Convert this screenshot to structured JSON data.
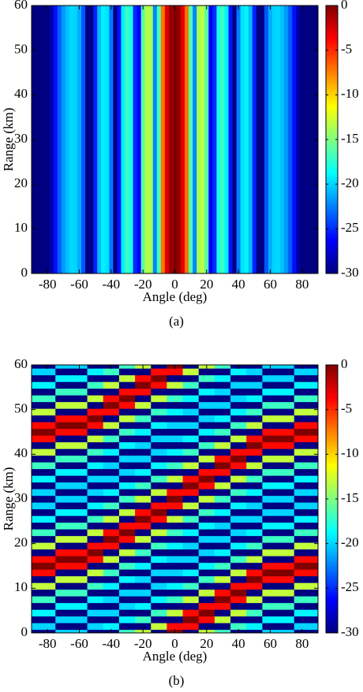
{
  "chart_data": [
    {
      "type": "heatmap",
      "caption": "(a)",
      "xlabel": "Angle (deg)",
      "ylabel": "Range (km)",
      "x": [
        -90,
        -87.5,
        -85,
        -82.5,
        -80,
        -77.5,
        -75,
        -72.5,
        -70,
        -67.5,
        -65,
        -62.5,
        -60,
        -57.5,
        -55,
        -52.5,
        -50,
        -47.5,
        -45,
        -42.5,
        -40,
        -37.5,
        -35,
        -32.5,
        -30,
        -27.5,
        -25,
        -22.5,
        -20,
        -17.5,
        -15,
        -12.5,
        -10,
        -7.5,
        -5,
        -2.5,
        0,
        2.5,
        5,
        7.5,
        10,
        12.5,
        15,
        17.5,
        20,
        22.5,
        25,
        27.5,
        30,
        32.5,
        35,
        37.5,
        40,
        42.5,
        45,
        47.5,
        50,
        52.5,
        55,
        57.5,
        60,
        62.5,
        65,
        67.5,
        70,
        72.5,
        75,
        77.5,
        80,
        82.5,
        85,
        87.5,
        90
      ],
      "values": [
        -30,
        -30,
        -30,
        -30,
        -30,
        -28.8,
        -25.8,
        -23.5,
        -21.8,
        -20.6,
        -19.9,
        -20,
        -21.1,
        -23.7,
        -30,
        -30,
        -25.3,
        -20.8,
        -19.1,
        -19.5,
        -22.7,
        -30,
        -25.8,
        -19.1,
        -17,
        -18.1,
        -25,
        -26.4,
        -16.2,
        -13.2,
        -13.9,
        -22.3,
        -16.5,
        -7.2,
        -2.9,
        -0.7,
        0,
        -0.7,
        -2.9,
        -7.2,
        -16.5,
        -22.3,
        -13.9,
        -13.2,
        -16.2,
        -26.4,
        -25,
        -18.1,
        -17,
        -19.1,
        -25.8,
        -30,
        -22.7,
        -19.5,
        -19.1,
        -20.8,
        -25.3,
        -30,
        -30,
        -23.7,
        -21.1,
        -20,
        -19.9,
        -20.6,
        -21.8,
        -23.5,
        -25.8,
        -28.8,
        -30,
        -30,
        -30,
        -30,
        -30
      ],
      "xlim": [
        -90,
        90
      ],
      "ylim": [
        0,
        60
      ],
      "xticks": [
        -80,
        -60,
        -40,
        -20,
        0,
        20,
        40,
        60,
        80
      ],
      "yticks": [
        0,
        10,
        20,
        30,
        40,
        50,
        60
      ],
      "colormap": "jet",
      "clim": [
        -30,
        0
      ],
      "cticks": [
        0,
        -5,
        -10,
        -15,
        -20,
        -25,
        -30
      ]
    },
    {
      "type": "heatmap",
      "caption": "(b)",
      "xlabel": "Angle (deg)",
      "ylabel": "Range (km)",
      "x": [
        -90,
        -80,
        -70,
        -60,
        -50,
        -40,
        -30,
        -20,
        -10,
        0,
        10,
        20,
        30,
        40,
        50,
        60,
        70,
        80,
        90
      ],
      "y": [
        0,
        1.5,
        3,
        4.5,
        6,
        7.5,
        9,
        10.5,
        12,
        13.5,
        15,
        16.5,
        18,
        19.5,
        21,
        22.5,
        24,
        25.5,
        27,
        28.5,
        30,
        31.5,
        33,
        34.5,
        36,
        37.5,
        39,
        40.5,
        42,
        43.5,
        45,
        46.5,
        48,
        49.5,
        51,
        52.5,
        54,
        55.5,
        57,
        58.5,
        60
      ],
      "z": [
        [
          -30,
          -30,
          -20,
          -20,
          -30,
          -30,
          -17,
          -13,
          -30,
          0,
          -30,
          -13,
          -17,
          -30,
          -30,
          -20,
          -20,
          -30,
          -30
        ],
        [
          -20,
          -20,
          -30,
          -30,
          -20,
          -19,
          -30,
          -30,
          -13,
          -4,
          -4,
          -30,
          -30,
          -17,
          -19,
          -30,
          -30,
          -20,
          -20
        ],
        [
          -30,
          -30,
          -20,
          -20,
          -30,
          -30,
          -19,
          -17,
          -30,
          -30,
          0,
          -4,
          -13,
          -30,
          -30,
          -19,
          -19,
          -30,
          -30
        ],
        [
          -19,
          -19,
          -30,
          -30,
          -20,
          -20,
          -30,
          -30,
          -17,
          -13,
          -4,
          0,
          -30,
          -13,
          -17,
          -30,
          -30,
          -19,
          -19
        ],
        [
          -30,
          -30,
          -19,
          -19,
          -30,
          -30,
          -20,
          -19,
          -30,
          -30,
          -30,
          -4,
          -4,
          -30,
          -30,
          -17,
          -17,
          -30,
          -30
        ],
        [
          -17,
          -17,
          -30,
          -30,
          -19,
          -20,
          -30,
          -30,
          -19,
          -17,
          -13,
          -30,
          0,
          -4,
          -13,
          -30,
          -30,
          -17,
          -17
        ],
        [
          -30,
          -30,
          -17,
          -17,
          -30,
          -30,
          -20,
          -20,
          -30,
          -30,
          -30,
          -13,
          -4,
          0,
          -30,
          -13,
          -13,
          -30,
          -30
        ],
        [
          -13,
          -13,
          -30,
          -30,
          -17,
          -19,
          -30,
          -30,
          -20,
          -19,
          -17,
          -30,
          -30,
          -4,
          -4,
          -30,
          -30,
          -13,
          -13
        ],
        [
          -30,
          -30,
          -13,
          -13,
          -30,
          -30,
          -19,
          -20,
          -30,
          -30,
          -30,
          -17,
          -13,
          -30,
          0,
          -4,
          -4,
          -30,
          -30
        ],
        [
          -4,
          -4,
          -30,
          -30,
          -13,
          -17,
          -30,
          -30,
          -20,
          -20,
          -19,
          -30,
          -30,
          -13,
          -4,
          0,
          0,
          -4,
          -4
        ],
        [
          0,
          0,
          -4,
          -4,
          -30,
          -30,
          -17,
          -19,
          -30,
          -30,
          -30,
          -19,
          -17,
          -30,
          -30,
          -4,
          -4,
          0,
          0
        ],
        [
          -4,
          -4,
          0,
          0,
          -4,
          -13,
          -30,
          -30,
          -19,
          -20,
          -20,
          -30,
          -30,
          -17,
          -13,
          -30,
          -30,
          -4,
          -4
        ],
        [
          -30,
          -30,
          -4,
          -4,
          0,
          -30,
          -13,
          -17,
          -30,
          -30,
          -30,
          -20,
          -19,
          -30,
          -30,
          -13,
          -13,
          -30,
          -30
        ],
        [
          -13,
          -13,
          -30,
          -30,
          -4,
          -4,
          -30,
          -30,
          -17,
          -19,
          -20,
          -30,
          -30,
          -19,
          -17,
          -30,
          -30,
          -13,
          -13
        ],
        [
          -30,
          -30,
          -13,
          -13,
          -30,
          0,
          -4,
          -13,
          -30,
          -30,
          -30,
          -20,
          -20,
          -30,
          -30,
          -17,
          -17,
          -30,
          -30
        ],
        [
          -17,
          -17,
          -30,
          -30,
          -13,
          -4,
          0,
          -30,
          -13,
          -17,
          -19,
          -30,
          -30,
          -20,
          -19,
          -30,
          -30,
          -17,
          -17
        ],
        [
          -30,
          -30,
          -17,
          -17,
          -30,
          -30,
          -4,
          -4,
          -30,
          -30,
          -30,
          -19,
          -20,
          -30,
          -30,
          -19,
          -19,
          -30,
          -30
        ],
        [
          -19,
          -19,
          -30,
          -30,
          -17,
          -13,
          -30,
          0,
          -4,
          -13,
          -17,
          -30,
          -30,
          -20,
          -20,
          -30,
          -30,
          -19,
          -19
        ],
        [
          -30,
          -30,
          -19,
          -19,
          -30,
          -30,
          -13,
          -4,
          0,
          -30,
          -30,
          -17,
          -19,
          -30,
          -30,
          -20,
          -20,
          -30,
          -30
        ],
        [
          -20,
          -20,
          -30,
          -30,
          -19,
          -17,
          -30,
          -30,
          -4,
          -4,
          -13,
          -30,
          -30,
          -19,
          -20,
          -30,
          -30,
          -20,
          -20
        ],
        [
          -30,
          -30,
          -20,
          -20,
          -30,
          -30,
          -17,
          -13,
          -30,
          0,
          -30,
          -13,
          -17,
          -30,
          -30,
          -20,
          -20,
          -30,
          -30
        ],
        [
          -20,
          -20,
          -30,
          -30,
          -20,
          -19,
          -30,
          -30,
          -13,
          -4,
          -4,
          -30,
          -30,
          -17,
          -19,
          -30,
          -30,
          -20,
          -20
        ],
        [
          -30,
          -30,
          -20,
          -20,
          -30,
          -30,
          -19,
          -17,
          -30,
          -30,
          0,
          -4,
          -13,
          -30,
          -30,
          -19,
          -19,
          -30,
          -30
        ],
        [
          -19,
          -19,
          -30,
          -30,
          -20,
          -20,
          -30,
          -30,
          -17,
          -13,
          -4,
          0,
          -30,
          -13,
          -17,
          -30,
          -30,
          -19,
          -19
        ],
        [
          -30,
          -30,
          -19,
          -19,
          -30,
          -30,
          -20,
          -19,
          -30,
          -30,
          -30,
          -4,
          -4,
          -30,
          -30,
          -17,
          -17,
          -30,
          -30
        ],
        [
          -17,
          -17,
          -30,
          -30,
          -19,
          -20,
          -30,
          -30,
          -19,
          -17,
          -13,
          -30,
          0,
          -4,
          -13,
          -30,
          -30,
          -17,
          -17
        ],
        [
          -30,
          -30,
          -17,
          -17,
          -30,
          -30,
          -20,
          -20,
          -30,
          -30,
          -30,
          -13,
          -4,
          0,
          -30,
          -13,
          -13,
          -30,
          -30
        ],
        [
          -13,
          -13,
          -30,
          -30,
          -17,
          -19,
          -30,
          -30,
          -20,
          -19,
          -17,
          -30,
          -30,
          -4,
          -4,
          -30,
          -30,
          -13,
          -13
        ],
        [
          -30,
          -30,
          -13,
          -13,
          -30,
          -30,
          -19,
          -20,
          -30,
          -30,
          -30,
          -17,
          -13,
          -30,
          0,
          -4,
          -4,
          -30,
          -30
        ],
        [
          -4,
          -4,
          -30,
          -30,
          -13,
          -17,
          -30,
          -30,
          -20,
          -20,
          -19,
          -30,
          -30,
          -13,
          -4,
          0,
          0,
          -4,
          -4
        ],
        [
          0,
          0,
          -4,
          -4,
          -30,
          -30,
          -17,
          -19,
          -30,
          -30,
          -30,
          -19,
          -17,
          -30,
          -30,
          -4,
          -4,
          0,
          0
        ],
        [
          -4,
          -4,
          0,
          0,
          -4,
          -13,
          -30,
          -30,
          -19,
          -20,
          -20,
          -30,
          -30,
          -17,
          -13,
          -30,
          -30,
          -4,
          -4
        ],
        [
          -30,
          -30,
          -4,
          -4,
          0,
          -30,
          -13,
          -17,
          -30,
          -30,
          -30,
          -20,
          -19,
          -30,
          -30,
          -13,
          -13,
          -30,
          -30
        ],
        [
          -13,
          -13,
          -30,
          -30,
          -4,
          -4,
          -30,
          -30,
          -17,
          -19,
          -20,
          -30,
          -30,
          -19,
          -17,
          -30,
          -30,
          -13,
          -13
        ],
        [
          -30,
          -30,
          -13,
          -13,
          -30,
          0,
          -4,
          -13,
          -30,
          -30,
          -30,
          -20,
          -20,
          -30,
          -30,
          -17,
          -17,
          -30,
          -30
        ],
        [
          -17,
          -17,
          -30,
          -30,
          -13,
          -4,
          0,
          -30,
          -13,
          -17,
          -19,
          -30,
          -30,
          -20,
          -19,
          -30,
          -30,
          -17,
          -17
        ],
        [
          -30,
          -30,
          -17,
          -17,
          -30,
          -30,
          -4,
          -4,
          -30,
          -30,
          -30,
          -19,
          -20,
          -30,
          -30,
          -19,
          -19,
          -30,
          -30
        ],
        [
          -19,
          -19,
          -30,
          -30,
          -17,
          -13,
          -30,
          0,
          -4,
          -13,
          -17,
          -30,
          -30,
          -20,
          -20,
          -30,
          -30,
          -19,
          -19
        ],
        [
          -30,
          -30,
          -19,
          -19,
          -30,
          -30,
          -13,
          -4,
          0,
          -30,
          -30,
          -17,
          -19,
          -30,
          -30,
          -20,
          -20,
          -30,
          -30
        ],
        [
          -20,
          -20,
          -30,
          -30,
          -19,
          -17,
          -30,
          -30,
          -4,
          -4,
          -13,
          -30,
          -30,
          -19,
          -20,
          -30,
          -30,
          -20,
          -20
        ],
        [
          -30,
          -30,
          -20,
          -20,
          -30,
          -30,
          -17,
          -13,
          -30,
          0,
          -30,
          -13,
          -17,
          -30,
          -30,
          -20,
          -20,
          -30,
          -30
        ]
      ],
      "xlim": [
        -90,
        90
      ],
      "ylim": [
        0,
        60
      ],
      "xticks": [
        -80,
        -60,
        -40,
        -20,
        0,
        20,
        40,
        60,
        80
      ],
      "yticks": [
        0,
        10,
        20,
        30,
        40,
        50,
        60
      ],
      "colormap": "jet",
      "clim": [
        -30,
        0
      ],
      "cticks": [
        0,
        -5,
        -10,
        -15,
        -20,
        -25,
        -30
      ]
    }
  ]
}
